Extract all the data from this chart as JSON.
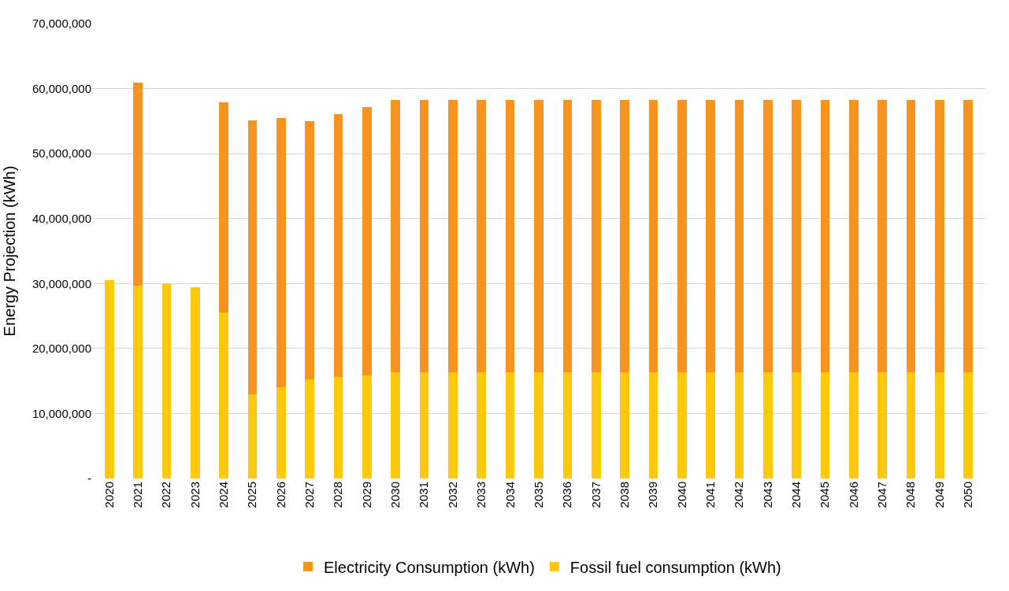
{
  "chart_data": {
    "type": "bar",
    "stacked": true,
    "ylabel": "Energy Projection (kWh)",
    "categories": [
      "2020",
      "2021",
      "2022",
      "2023",
      "2024",
      "2025",
      "2026",
      "2027",
      "2028",
      "2029",
      "2030",
      "2031",
      "2032",
      "2033",
      "2034",
      "2035",
      "2036",
      "2037",
      "2038",
      "2039",
      "2040",
      "2041",
      "2042",
      "2043",
      "2044",
      "2045",
      "2046",
      "2047",
      "2048",
      "2049",
      "2050"
    ],
    "series": [
      {
        "name": "Fossil fuel consumption (kWh)",
        "color": "#ffc80b",
        "values": [
          30500000,
          29700000,
          30000000,
          29400000,
          25500000,
          13000000,
          14100000,
          15300000,
          15600000,
          15900000,
          16300000,
          16300000,
          16300000,
          16300000,
          16300000,
          16300000,
          16300000,
          16300000,
          16300000,
          16300000,
          16300000,
          16300000,
          16300000,
          16300000,
          16300000,
          16300000,
          16300000,
          16300000,
          16300000,
          16300000,
          16300000
        ]
      },
      {
        "name": "Electricity Consumption (kWh)",
        "color": "#f7931e",
        "values": [
          null,
          31200000,
          null,
          null,
          32400000,
          42100000,
          41400000,
          39700000,
          40500000,
          41300000,
          42000000,
          42000000,
          42000000,
          42000000,
          42000000,
          42000000,
          42000000,
          42000000,
          42000000,
          42000000,
          42000000,
          42000000,
          42000000,
          42000000,
          42000000,
          42000000,
          42000000,
          42000000,
          42000000,
          42000000,
          42000000
        ]
      }
    ],
    "ylim": [
      0,
      70000000
    ],
    "yticks": [
      {
        "value": 0,
        "label": "-"
      },
      {
        "value": 10000000,
        "label": "10,000,000"
      },
      {
        "value": 20000000,
        "label": "20,000,000"
      },
      {
        "value": 30000000,
        "label": "30,000,000"
      },
      {
        "value": 40000000,
        "label": "40,000,000"
      },
      {
        "value": 50000000,
        "label": "50,000,000"
      },
      {
        "value": 60000000,
        "label": "60,000,000"
      },
      {
        "value": 70000000,
        "label": "70,000,000"
      }
    ],
    "grid": "y",
    "legend": "bottom"
  }
}
